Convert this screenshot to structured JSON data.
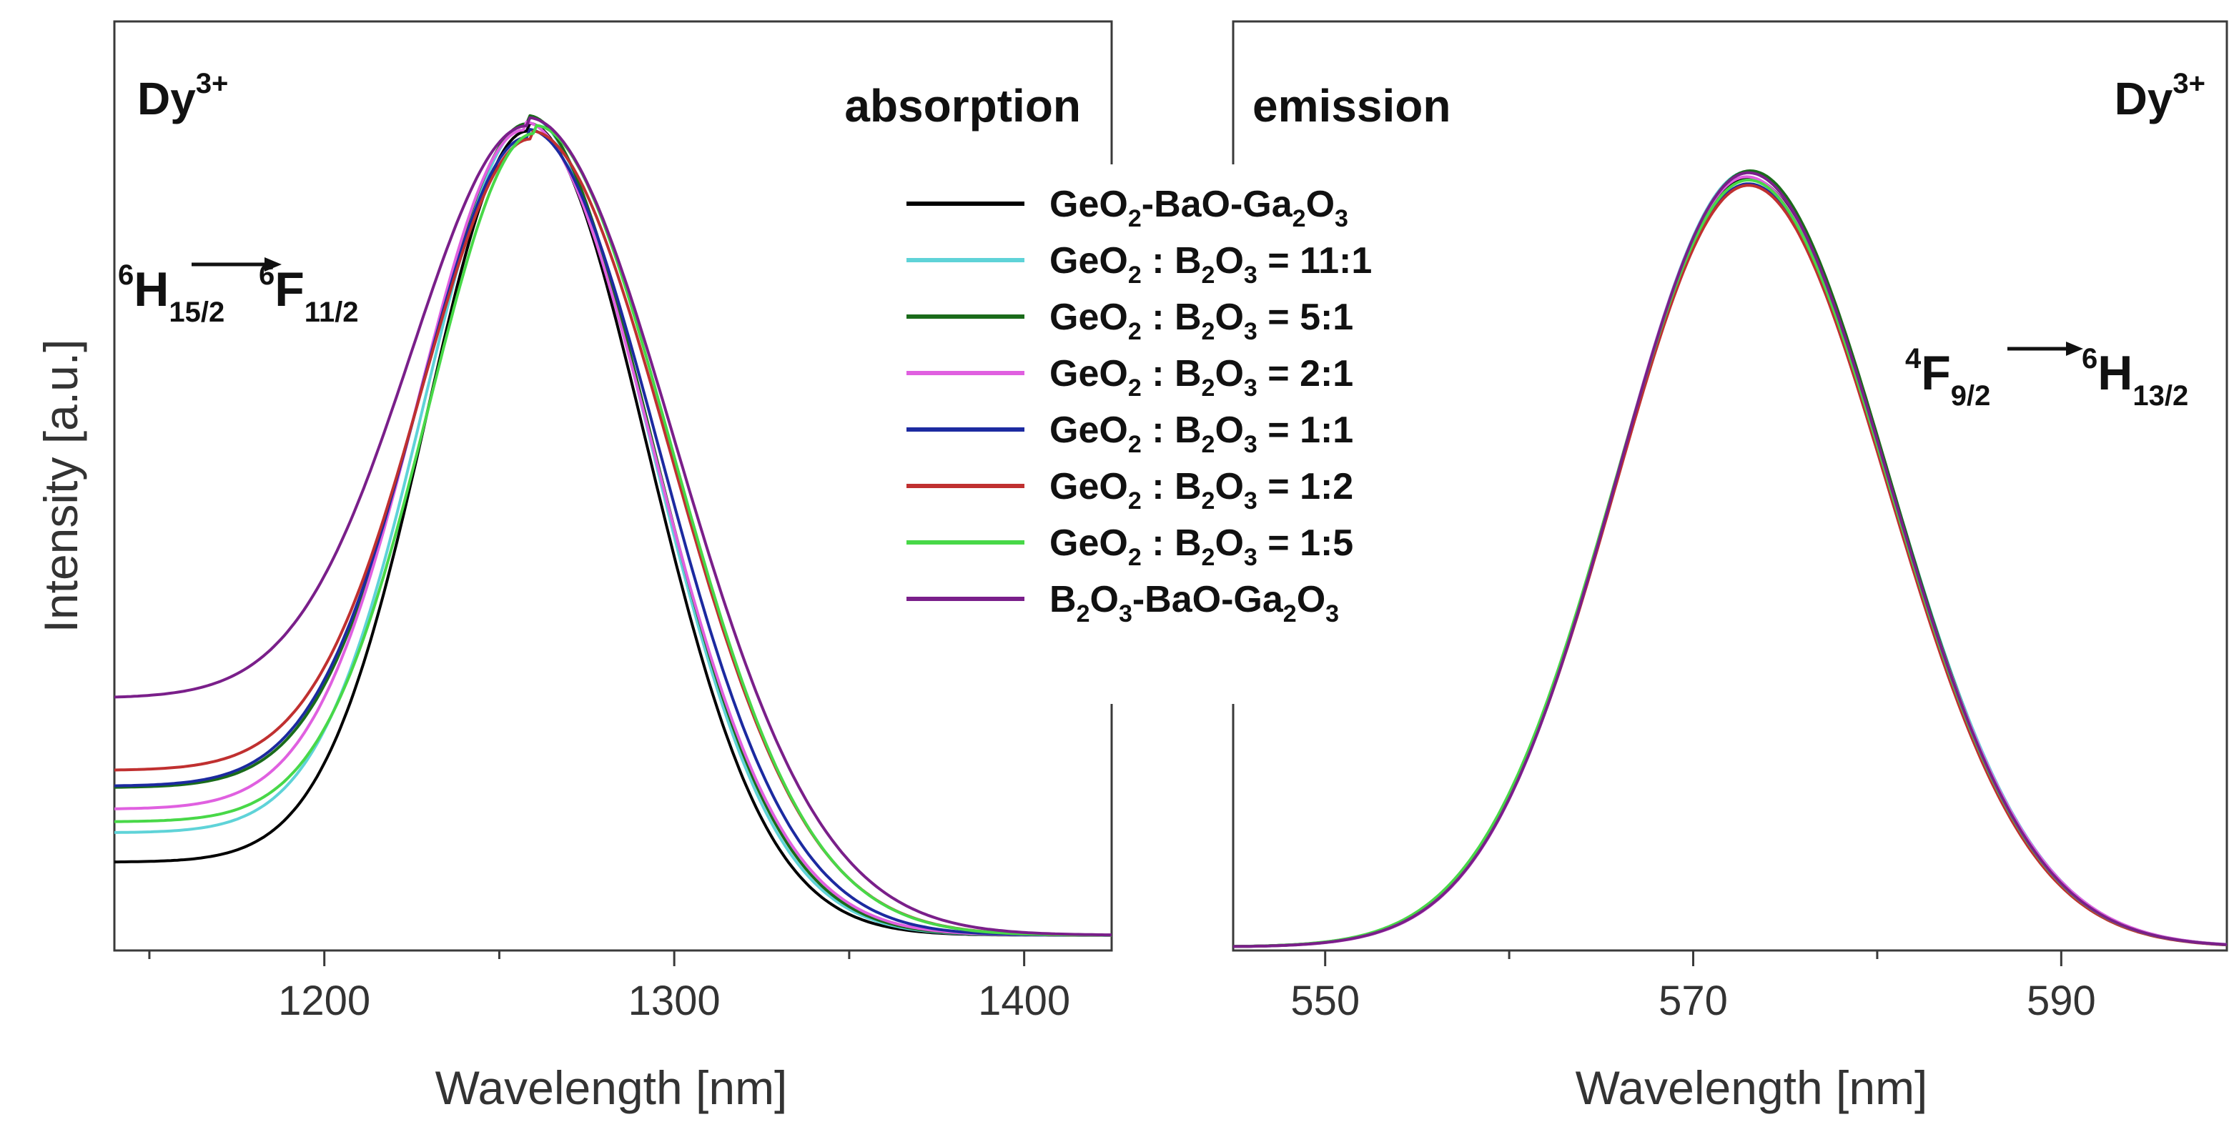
{
  "chart_data": [
    {
      "type": "line",
      "panel": "absorption",
      "title": "absorption",
      "ion_label": {
        "base": "Dy",
        "sup": "3+"
      },
      "transition": {
        "from_sup": "6",
        "from": "H",
        "from_sub": "15/2",
        "to_sup": "6",
        "to": "F",
        "to_sub": "11/2"
      },
      "xlabel": "Wavelength [nm]",
      "ylabel": "Intensity [a.u.]",
      "xlim": [
        1140,
        1425
      ],
      "ylim": [
        0,
        1.0
      ],
      "xticks": [
        1200,
        1300,
        1400
      ],
      "xtick_labels": [
        "1200",
        "1300",
        "1400"
      ],
      "peak_nm": 1258,
      "series": [
        {
          "name": "GeO2-BaO-Ga2O3",
          "color": "#000000",
          "baseline": 0.1,
          "peak_x": 1258,
          "sigma_left": 29,
          "sigma_right": 34
        },
        {
          "name": "GeO2 : B2O3 = 11:1",
          "color": "#5fd3d8",
          "baseline": 0.135,
          "peak_x": 1258,
          "sigma_left": 29.5,
          "sigma_right": 35
        },
        {
          "name": "GeO2 : B2O3 = 5:1",
          "color": "#1a6b1a",
          "baseline": 0.19,
          "peak_x": 1258,
          "sigma_left": 30,
          "sigma_right": 35.5
        },
        {
          "name": "GeO2 : B2O3 = 2:1",
          "color": "#e060e0",
          "baseline": 0.165,
          "peak_x": 1257,
          "sigma_left": 30,
          "sigma_right": 36.5
        },
        {
          "name": "GeO2 : B2O3 = 1:1",
          "color": "#1c2aa0",
          "baseline": 0.195,
          "peak_x": 1258,
          "sigma_left": 30.5,
          "sigma_right": 37.5
        },
        {
          "name": "GeO2 : B2O3 = 1:2",
          "color": "#c03030",
          "baseline": 0.215,
          "peak_x": 1259,
          "sigma_left": 31,
          "sigma_right": 39.5
        },
        {
          "name": "GeO2 : B2O3 = 1:5",
          "color": "#48d848",
          "baseline": 0.15,
          "peak_x": 1260,
          "sigma_left": 30,
          "sigma_right": 39
        },
        {
          "name": "B2O3-BaO-Ga2O3",
          "color": "#7a1f8a",
          "baseline": 0.3,
          "peak_x": 1258,
          "sigma_left": 33,
          "sigma_right": 42
        }
      ]
    },
    {
      "type": "line",
      "panel": "emission",
      "title": "emission",
      "ion_label": {
        "base": "Dy",
        "sup": "3+"
      },
      "transition": {
        "from_sup": "4",
        "from": "F",
        "from_sub": "9/2",
        "to_sup": "6",
        "to": "H",
        "to_sub": "13/2"
      },
      "xlabel": "Wavelength [nm]",
      "xlim": [
        545,
        599
      ],
      "ylim": [
        0,
        1.0
      ],
      "xticks": [
        550,
        570,
        590
      ],
      "xtick_labels": [
        "550",
        "570",
        "590"
      ],
      "peak_nm": 573,
      "series": [
        {
          "name": "GeO2-BaO-Ga2O3",
          "color": "#000000",
          "baseline": 0,
          "peak_x": 573.0,
          "sigma_left": 7.2,
          "sigma_right": 7.6
        },
        {
          "name": "GeO2 : B2O3 = 11:1",
          "color": "#5fd3d8",
          "baseline": 0,
          "peak_x": 573.0,
          "sigma_left": 7.15,
          "sigma_right": 7.65
        },
        {
          "name": "GeO2 : B2O3 = 5:1",
          "color": "#1a6b1a",
          "baseline": 0,
          "peak_x": 573.1,
          "sigma_left": 7.25,
          "sigma_right": 7.55
        },
        {
          "name": "GeO2 : B2O3 = 2:1",
          "color": "#e060e0",
          "baseline": 0,
          "peak_x": 572.9,
          "sigma_left": 7.1,
          "sigma_right": 7.7
        },
        {
          "name": "GeO2 : B2O3 = 1:1",
          "color": "#1c2aa0",
          "baseline": 0,
          "peak_x": 573.0,
          "sigma_left": 7.2,
          "sigma_right": 7.6
        },
        {
          "name": "GeO2 : B2O3 = 1:2",
          "color": "#c03030",
          "baseline": 0,
          "peak_x": 573.0,
          "sigma_left": 7.2,
          "sigma_right": 7.55
        },
        {
          "name": "GeO2 : B2O3 = 1:5",
          "color": "#48d848",
          "baseline": 0,
          "peak_x": 573.0,
          "sigma_left": 7.25,
          "sigma_right": 7.6
        },
        {
          "name": "B2O3-BaO-Ga2O3",
          "color": "#7a1f8a",
          "baseline": 0,
          "peak_x": 573.0,
          "sigma_left": 7.15,
          "sigma_right": 7.6
        }
      ]
    }
  ],
  "legend": {
    "entries": [
      {
        "color": "#000000",
        "parts": [
          [
            "GeO",
            ""
          ],
          [
            "2",
            "sub"
          ],
          [
            "-BaO-Ga",
            ""
          ],
          [
            "2",
            "sub"
          ],
          [
            "O",
            ""
          ],
          [
            "3",
            "sub"
          ]
        ]
      },
      {
        "color": "#5fd3d8",
        "parts": [
          [
            "GeO",
            ""
          ],
          [
            "2",
            "sub"
          ],
          [
            " : B",
            ""
          ],
          [
            "2",
            "sub"
          ],
          [
            "O",
            ""
          ],
          [
            "3",
            "sub"
          ],
          [
            " = 11:1",
            ""
          ]
        ]
      },
      {
        "color": "#1a6b1a",
        "parts": [
          [
            "GeO",
            ""
          ],
          [
            "2",
            "sub"
          ],
          [
            " : B",
            ""
          ],
          [
            "2",
            "sub"
          ],
          [
            "O",
            ""
          ],
          [
            "3",
            "sub"
          ],
          [
            " = 5:1",
            ""
          ]
        ]
      },
      {
        "color": "#e060e0",
        "parts": [
          [
            "GeO",
            ""
          ],
          [
            "2",
            "sub"
          ],
          [
            " : B",
            ""
          ],
          [
            "2",
            "sub"
          ],
          [
            "O",
            ""
          ],
          [
            "3",
            "sub"
          ],
          [
            " = 2:1",
            ""
          ]
        ]
      },
      {
        "color": "#1c2aa0",
        "parts": [
          [
            "GeO",
            ""
          ],
          [
            "2",
            "sub"
          ],
          [
            " : B",
            ""
          ],
          [
            "2",
            "sub"
          ],
          [
            "O",
            ""
          ],
          [
            "3",
            "sub"
          ],
          [
            " = 1:1",
            ""
          ]
        ]
      },
      {
        "color": "#c03030",
        "parts": [
          [
            "GeO",
            ""
          ],
          [
            "2",
            "sub"
          ],
          [
            " : B",
            ""
          ],
          [
            "2",
            "sub"
          ],
          [
            "O",
            ""
          ],
          [
            "3",
            "sub"
          ],
          [
            " = 1:2",
            ""
          ]
        ]
      },
      {
        "color": "#48d848",
        "parts": [
          [
            "GeO",
            ""
          ],
          [
            "2",
            "sub"
          ],
          [
            " : B",
            ""
          ],
          [
            "2",
            "sub"
          ],
          [
            "O",
            ""
          ],
          [
            "3",
            "sub"
          ],
          [
            " = 1:5",
            ""
          ]
        ]
      },
      {
        "color": "#7a1f8a",
        "parts": [
          [
            "B",
            ""
          ],
          [
            "2",
            "sub"
          ],
          [
            "O",
            ""
          ],
          [
            "3",
            "sub"
          ],
          [
            "-BaO-Ga",
            ""
          ],
          [
            "2",
            "sub"
          ],
          [
            "O",
            ""
          ],
          [
            "3",
            "sub"
          ]
        ]
      }
    ]
  }
}
